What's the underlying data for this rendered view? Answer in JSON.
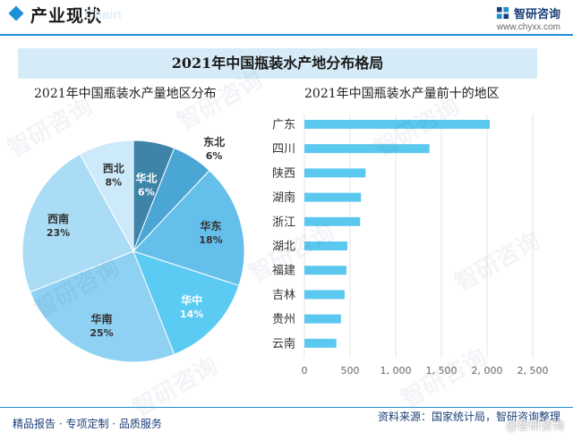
{
  "header": {
    "title": "产业现状",
    "ghost": "Chain",
    "logo_name": "智研咨询",
    "logo_url": "www.chyxx.com"
  },
  "banner_title": "2021年中国瓶装水产地分布格局",
  "watermark": "智研咨询",
  "colors": {
    "accent": "#1f8fd6",
    "banner_bg": "#d6ebf8",
    "bar": "#5bc8f0",
    "brand_dark": "#1b3f78"
  },
  "chart_data": [
    {
      "type": "pie",
      "title": "2021年中国瓶装水产量地区分布",
      "slices": [
        {
          "label": "华北",
          "pct_label": "6%",
          "value": 6,
          "color": "#3e84a8"
        },
        {
          "label": "东北",
          "pct_label": "6%",
          "value": 6,
          "color": "#4aa6d4"
        },
        {
          "label": "华东",
          "pct_label": "18%",
          "value": 18,
          "color": "#64c0ea"
        },
        {
          "label": "华中",
          "pct_label": "14%",
          "value": 14,
          "color": "#5ccbf4"
        },
        {
          "label": "华南",
          "pct_label": "25%",
          "value": 25,
          "color": "#8ed1f2"
        },
        {
          "label": "西南",
          "pct_label": "23%",
          "value": 23,
          "color": "#aadcf5"
        },
        {
          "label": "西北",
          "pct_label": "8%",
          "value": 8,
          "color": "#cdeafa"
        }
      ],
      "start_angle_deg": 0,
      "direction": "clockwise"
    },
    {
      "type": "bar",
      "orientation": "horizontal",
      "title": "2021年中国瓶装水产量前十的地区",
      "categories": [
        "广东",
        "四川",
        "陕西",
        "湖南",
        "浙江",
        "湖北",
        "福建",
        "吉林",
        "贵州",
        "云南"
      ],
      "values": [
        2030,
        1370,
        670,
        620,
        610,
        470,
        460,
        440,
        400,
        350
      ],
      "xlim": [
        0,
        2500
      ],
      "xticks": [
        0,
        500,
        1000,
        1500,
        2000,
        2500
      ],
      "xtick_labels": [
        "0",
        "500",
        "1, 000",
        "1, 500",
        "2, 000",
        "2, 500"
      ],
      "grid": true
    }
  ],
  "footer": {
    "left": "精品报告 · 专项定制 · 品质服务",
    "source": "资料来源：国家统计局，智研咨询整理",
    "stamp": "@智研咨询"
  }
}
